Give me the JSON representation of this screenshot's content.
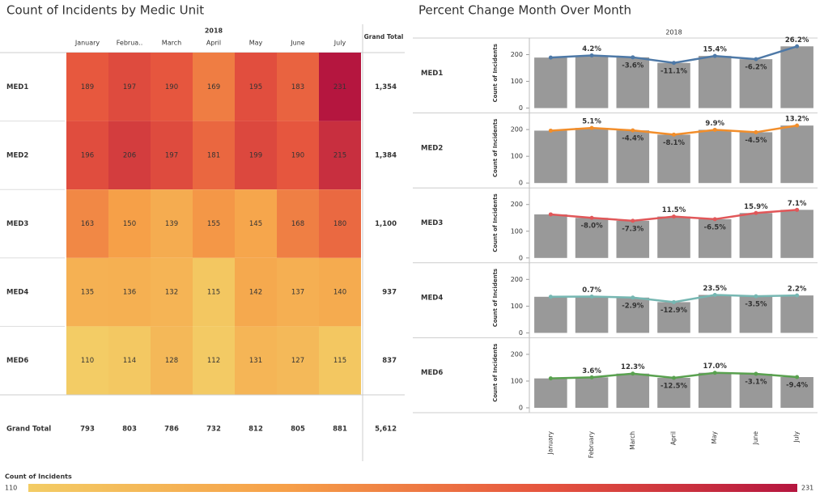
{
  "chart_data": [
    {
      "type": "heatmap",
      "title": "Count of Incidents by Medic Unit",
      "header": "2018",
      "columns": [
        "January",
        "Februa..",
        "March",
        "April",
        "May",
        "June",
        "July"
      ],
      "rows": [
        "MED1",
        "MED2",
        "MED3",
        "MED4",
        "MED6"
      ],
      "values": [
        [
          189,
          197,
          190,
          169,
          195,
          183,
          231
        ],
        [
          196,
          206,
          197,
          181,
          199,
          190,
          215
        ],
        [
          163,
          150,
          139,
          155,
          145,
          168,
          180
        ],
        [
          135,
          136,
          132,
          115,
          142,
          137,
          140
        ],
        [
          110,
          114,
          128,
          112,
          131,
          127,
          115
        ]
      ],
      "total_header": "Grand Total",
      "total_row": "Grand Total",
      "row_totals": [
        1354,
        1384,
        1100,
        937,
        837
      ],
      "row_total_labels": [
        "1,354",
        "1,384",
        "1,100",
        "937",
        "837"
      ],
      "col_totals": [
        793,
        803,
        786,
        732,
        812,
        805,
        881
      ],
      "col_total_labels": [
        "793",
        "803",
        "786",
        "732",
        "812",
        "805",
        "881"
      ],
      "grand_total": 5612,
      "grand_total_label": "5,612",
      "legend": {
        "title": "Count of Incidents",
        "min": 110,
        "max": 231
      },
      "color_stops": [
        "#f3cc65",
        "#f6a048",
        "#e6553e",
        "#b5163f"
      ]
    },
    {
      "type": "combo",
      "title": "Percent Change Month Over Month",
      "header": "2018",
      "y_axis_label": "Count of Incidents",
      "categories": [
        "January",
        "February",
        "March",
        "April",
        "May",
        "June",
        "July"
      ],
      "ylim": [
        0,
        250
      ],
      "yticks": [
        0,
        100,
        200
      ],
      "bar_color": "#999999",
      "panels": [
        {
          "name": "MED1",
          "color": "#4e79a7",
          "values": [
            189,
            197,
            190,
            169,
            195,
            183,
            231
          ],
          "pct_change": [
            null,
            4.2,
            -3.6,
            -11.1,
            15.4,
            -6.2,
            26.2
          ],
          "pct_labels": [
            null,
            "4.2%",
            "-3.6%",
            "-11.1%",
            "15.4%",
            "-6.2%",
            "26.2%"
          ]
        },
        {
          "name": "MED2",
          "color": "#f28e2b",
          "values": [
            196,
            206,
            197,
            181,
            199,
            190,
            215
          ],
          "pct_change": [
            null,
            5.1,
            -4.4,
            -8.1,
            9.9,
            -4.5,
            13.2
          ],
          "pct_labels": [
            null,
            "5.1%",
            "-4.4%",
            "-8.1%",
            "9.9%",
            "-4.5%",
            "13.2%"
          ]
        },
        {
          "name": "MED3",
          "color": "#e15759",
          "values": [
            163,
            150,
            139,
            155,
            145,
            168,
            180
          ],
          "pct_change": [
            null,
            -8.0,
            -7.3,
            11.5,
            -6.5,
            15.9,
            7.1
          ],
          "pct_labels": [
            null,
            "-8.0%",
            "-7.3%",
            "11.5%",
            "-6.5%",
            "15.9%",
            "7.1%"
          ]
        },
        {
          "name": "MED4",
          "color": "#76b7b2",
          "values": [
            135,
            136,
            132,
            115,
            142,
            137,
            140
          ],
          "pct_change": [
            null,
            0.7,
            -2.9,
            -12.9,
            23.5,
            -3.5,
            2.2
          ],
          "pct_labels": [
            null,
            "0.7%",
            "-2.9%",
            "-12.9%",
            "23.5%",
            "-3.5%",
            "2.2%"
          ]
        },
        {
          "name": "MED6",
          "color": "#59a14f",
          "values": [
            110,
            114,
            128,
            112,
            131,
            127,
            115
          ],
          "pct_change": [
            null,
            3.6,
            12.3,
            -12.5,
            17.0,
            -3.1,
            -9.4
          ],
          "pct_labels": [
            null,
            "3.6%",
            "12.3%",
            "-12.5%",
            "17.0%",
            "-3.1%",
            "-9.4%"
          ]
        }
      ]
    }
  ]
}
